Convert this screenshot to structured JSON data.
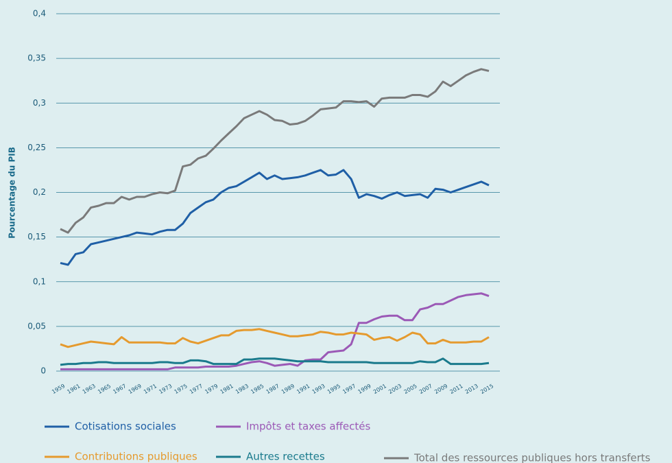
{
  "chart_data": {
    "type": "line",
    "y_label": "Pourcentage du PIB",
    "x": [
      1959,
      1960,
      1961,
      1962,
      1963,
      1964,
      1965,
      1966,
      1967,
      1968,
      1969,
      1970,
      1971,
      1972,
      1973,
      1974,
      1975,
      1976,
      1977,
      1978,
      1979,
      1980,
      1981,
      1982,
      1983,
      1984,
      1985,
      1986,
      1987,
      1988,
      1989,
      1990,
      1991,
      1992,
      1993,
      1994,
      1995,
      1996,
      1997,
      1998,
      1999,
      2000,
      2001,
      2002,
      2003,
      2004,
      2005,
      2006,
      2007,
      2008,
      2009,
      2010,
      2011,
      2012,
      2013,
      2014,
      2015
    ],
    "xlim": [
      1959,
      2015
    ],
    "xticks": [
      1959,
      1961,
      1963,
      1965,
      1967,
      1969,
      1971,
      1973,
      1975,
      1977,
      1979,
      1981,
      1983,
      1985,
      1987,
      1989,
      1991,
      1993,
      1995,
      1997,
      1999,
      2001,
      2003,
      2005,
      2007,
      2009,
      2011,
      2013,
      2015
    ],
    "ylim": [
      0,
      0.4
    ],
    "yticks": [
      0,
      {
        "value": 0.05,
        "label": "0,05"
      },
      {
        "value": 0.1,
        "label": "0,1"
      },
      {
        "value": 0.15,
        "label": "0,15"
      },
      {
        "value": 0.2,
        "label": "0,2"
      },
      {
        "value": 0.25,
        "label": "0,25"
      },
      {
        "value": 0.3,
        "label": "0,3"
      },
      {
        "value": 0.35,
        "label": "0,35"
      },
      {
        "value": 0.4,
        "label": "0,4"
      }
    ],
    "grid": true,
    "series": [
      {
        "name": "Cotisations sociales",
        "color": "#1f5fa6",
        "values": [
          0.121,
          0.119,
          0.131,
          0.133,
          0.142,
          0.144,
          0.146,
          0.148,
          0.15,
          0.152,
          0.155,
          0.154,
          0.153,
          0.156,
          0.158,
          0.158,
          0.165,
          0.177,
          0.183,
          0.189,
          0.192,
          0.2,
          0.205,
          0.207,
          0.212,
          0.217,
          0.222,
          0.215,
          0.219,
          0.215,
          0.216,
          0.217,
          0.219,
          0.222,
          0.225,
          0.219,
          0.22,
          0.225,
          0.215,
          0.194,
          0.198,
          0.196,
          0.193,
          0.197,
          0.2,
          0.196,
          0.197,
          0.198,
          0.194,
          0.204,
          0.203,
          0.2,
          0.203,
          0.206,
          0.209,
          0.212,
          0.208
        ]
      },
      {
        "name": "Impôts et taxes affectés",
        "color": "#9b59b6",
        "values": [
          0.002,
          0.002,
          0.002,
          0.002,
          0.002,
          0.002,
          0.002,
          0.002,
          0.002,
          0.002,
          0.002,
          0.002,
          0.002,
          0.002,
          0.002,
          0.004,
          0.004,
          0.004,
          0.004,
          0.005,
          0.005,
          0.005,
          0.005,
          0.006,
          0.008,
          0.01,
          0.011,
          0.009,
          0.006,
          0.007,
          0.008,
          0.006,
          0.012,
          0.013,
          0.013,
          0.021,
          0.022,
          0.023,
          0.03,
          0.054,
          0.054,
          0.058,
          0.061,
          0.062,
          0.062,
          0.057,
          0.057,
          0.069,
          0.071,
          0.075,
          0.075,
          0.079,
          0.083,
          0.085,
          0.086,
          0.087,
          0.084
        ]
      },
      {
        "name": "Contributions publiques",
        "color": "#e59a2e",
        "values": [
          0.03,
          0.027,
          0.029,
          0.031,
          0.033,
          0.032,
          0.031,
          0.03,
          0.038,
          0.032,
          0.032,
          0.032,
          0.032,
          0.032,
          0.031,
          0.031,
          0.037,
          0.033,
          0.031,
          0.034,
          0.037,
          0.04,
          0.04,
          0.045,
          0.046,
          0.046,
          0.047,
          0.045,
          0.043,
          0.041,
          0.039,
          0.039,
          0.04,
          0.041,
          0.044,
          0.043,
          0.041,
          0.041,
          0.043,
          0.042,
          0.041,
          0.035,
          0.037,
          0.038,
          0.034,
          0.038,
          0.043,
          0.041,
          0.031,
          0.031,
          0.035,
          0.032,
          0.032,
          0.032,
          0.033,
          0.033,
          0.038
        ]
      },
      {
        "name": "Autres recettes",
        "color": "#1a7a8c",
        "values": [
          0.007,
          0.008,
          0.008,
          0.009,
          0.009,
          0.01,
          0.01,
          0.009,
          0.009,
          0.009,
          0.009,
          0.009,
          0.009,
          0.01,
          0.01,
          0.009,
          0.009,
          0.012,
          0.012,
          0.011,
          0.008,
          0.008,
          0.008,
          0.008,
          0.013,
          0.013,
          0.014,
          0.014,
          0.014,
          0.013,
          0.012,
          0.011,
          0.011,
          0.011,
          0.011,
          0.01,
          0.01,
          0.01,
          0.01,
          0.01,
          0.01,
          0.009,
          0.009,
          0.009,
          0.009,
          0.009,
          0.009,
          0.011,
          0.01,
          0.01,
          0.014,
          0.008,
          0.008,
          0.008,
          0.008,
          0.008,
          0.009
        ]
      },
      {
        "name": "Total des ressources publiques hors transferts",
        "color": "#7a7a7a",
        "values": [
          0.159,
          0.155,
          0.166,
          0.172,
          0.183,
          0.185,
          0.188,
          0.188,
          0.195,
          0.192,
          0.195,
          0.195,
          0.198,
          0.2,
          0.199,
          0.202,
          0.229,
          0.231,
          0.238,
          0.241,
          0.249,
          0.258,
          0.266,
          0.274,
          0.283,
          0.287,
          0.291,
          0.287,
          0.281,
          0.28,
          0.276,
          0.277,
          0.28,
          0.286,
          0.293,
          0.294,
          0.295,
          0.302,
          0.302,
          0.301,
          0.302,
          0.296,
          0.305,
          0.306,
          0.306,
          0.306,
          0.309,
          0.309,
          0.307,
          0.313,
          0.324,
          0.319,
          0.325,
          0.331,
          0.335,
          0.338,
          0.336
        ]
      }
    ]
  }
}
